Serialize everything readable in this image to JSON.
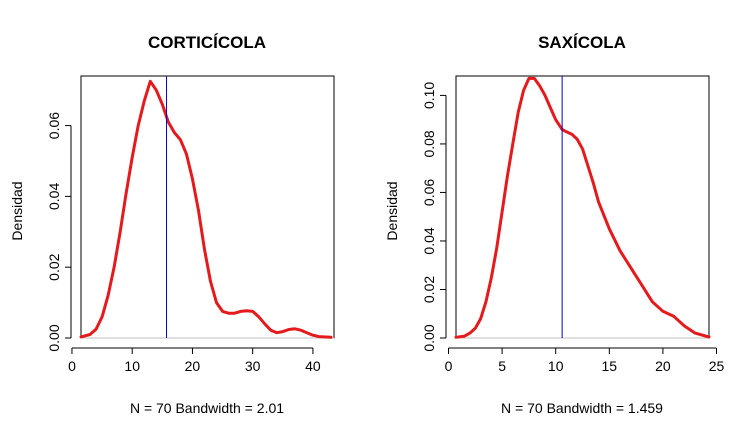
{
  "chart_data": [
    {
      "type": "line",
      "title": "CORTICÍCOLA",
      "ylabel": "Densidad",
      "xlabel": "N = 70   Bandwidth = 2.01",
      "xlim": [
        1.5,
        43.5
      ],
      "ylim": [
        0,
        0.074
      ],
      "xticks": [
        0,
        10,
        20,
        30,
        40
      ],
      "xtick_labels": [
        "0",
        "10",
        "20",
        "30",
        "40"
      ],
      "yticks": [
        0,
        0.02,
        0.04,
        0.06
      ],
      "ytick_labels": [
        "0.00",
        "0.02",
        "0.04",
        "0.06"
      ],
      "vline": 15.7,
      "line_color": "#e41a1c",
      "vline_color": "#0000cc",
      "baseline_color": "#bfbfbf",
      "series": [
        {
          "x": [
            1.5,
            3,
            4,
            5,
            6,
            7,
            8,
            9,
            10,
            11,
            12,
            13,
            14,
            15,
            15.7,
            16,
            17,
            18,
            19,
            20,
            21,
            22,
            23,
            24,
            25,
            26,
            27,
            28,
            29,
            30,
            31,
            32,
            33,
            34,
            35,
            36,
            37,
            38,
            39,
            40,
            41,
            43
          ],
          "y": [
            0.0003,
            0.001,
            0.0025,
            0.006,
            0.012,
            0.02,
            0.03,
            0.041,
            0.051,
            0.06,
            0.067,
            0.0725,
            0.07,
            0.066,
            0.0625,
            0.061,
            0.058,
            0.056,
            0.052,
            0.045,
            0.036,
            0.025,
            0.016,
            0.01,
            0.0075,
            0.007,
            0.007,
            0.0075,
            0.0077,
            0.0075,
            0.006,
            0.004,
            0.0022,
            0.0015,
            0.0018,
            0.0024,
            0.0026,
            0.0022,
            0.0015,
            0.0008,
            0.0004,
            0.0002
          ]
        }
      ]
    },
    {
      "type": "line",
      "title": "SAXÍCOLA",
      "ylabel": "Densidad",
      "xlabel": "N = 70   Bandwidth = 1.459",
      "xlim": [
        0.7,
        24.3
      ],
      "ylim": [
        0,
        0.108
      ],
      "xticks": [
        0,
        5,
        10,
        15,
        20,
        25
      ],
      "xtick_labels": [
        "0",
        "5",
        "10",
        "15",
        "20",
        "25"
      ],
      "yticks": [
        0,
        0.02,
        0.04,
        0.06,
        0.08,
        0.1
      ],
      "ytick_labels": [
        "0.00",
        "0.02",
        "0.04",
        "0.06",
        "0.08",
        "0.10"
      ],
      "vline": 10.6,
      "line_color": "#e41a1c",
      "vline_color": "#0000cc",
      "baseline_color": "#bfbfbf",
      "series": [
        {
          "x": [
            0.7,
            1.5,
            2,
            2.5,
            3,
            3.5,
            4,
            4.5,
            5,
            5.5,
            6,
            6.5,
            7,
            7.5,
            8,
            8.5,
            9,
            9.5,
            10,
            10.6,
            11,
            11.5,
            12,
            12.5,
            13,
            13.5,
            14,
            15,
            16,
            17,
            18,
            19,
            20,
            21,
            22,
            23,
            24.3
          ],
          "y": [
            0.0003,
            0.0008,
            0.002,
            0.004,
            0.008,
            0.015,
            0.025,
            0.037,
            0.052,
            0.067,
            0.08,
            0.093,
            0.102,
            0.107,
            0.107,
            0.104,
            0.1,
            0.095,
            0.09,
            0.086,
            0.085,
            0.084,
            0.082,
            0.078,
            0.071,
            0.064,
            0.056,
            0.045,
            0.036,
            0.029,
            0.022,
            0.015,
            0.011,
            0.009,
            0.005,
            0.002,
            0.0004
          ]
        }
      ]
    }
  ]
}
